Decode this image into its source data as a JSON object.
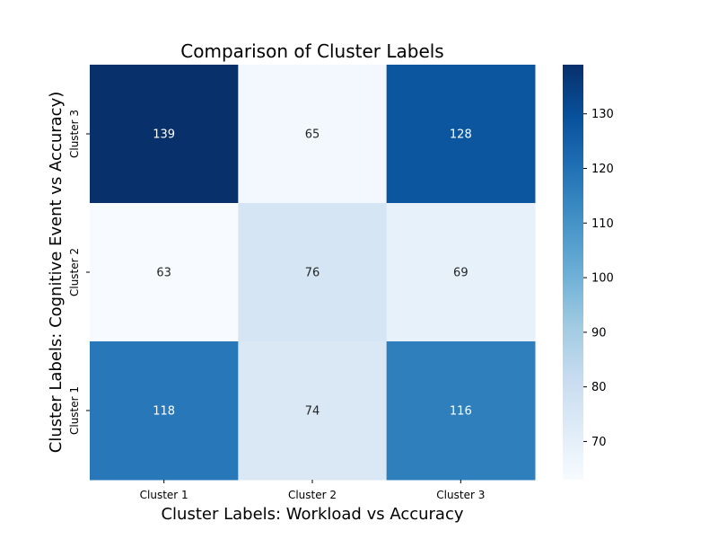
{
  "chart_data": {
    "type": "heatmap",
    "title": "Comparison of Cluster Labels",
    "xlabel": "Cluster Labels: Workload vs Accuracy",
    "ylabel": "Cluster Labels: Cognitive Event vs Accuracy)",
    "x_categories": [
      "Cluster 1",
      "Cluster 2",
      "Cluster 3"
    ],
    "y_categories_top_to_bottom": [
      "Cluster 3",
      "Cluster 2",
      "Cluster 1"
    ],
    "values": [
      [
        139,
        65,
        128
      ],
      [
        63,
        76,
        69
      ],
      [
        118,
        74,
        116
      ]
    ],
    "colorbar": {
      "min": 63,
      "max": 139,
      "ticks": [
        70,
        80,
        90,
        100,
        110,
        120,
        130
      ],
      "colormap": "Blues"
    },
    "annotation_colors": {
      "light": "#ffffff",
      "dark": "#262626"
    }
  }
}
